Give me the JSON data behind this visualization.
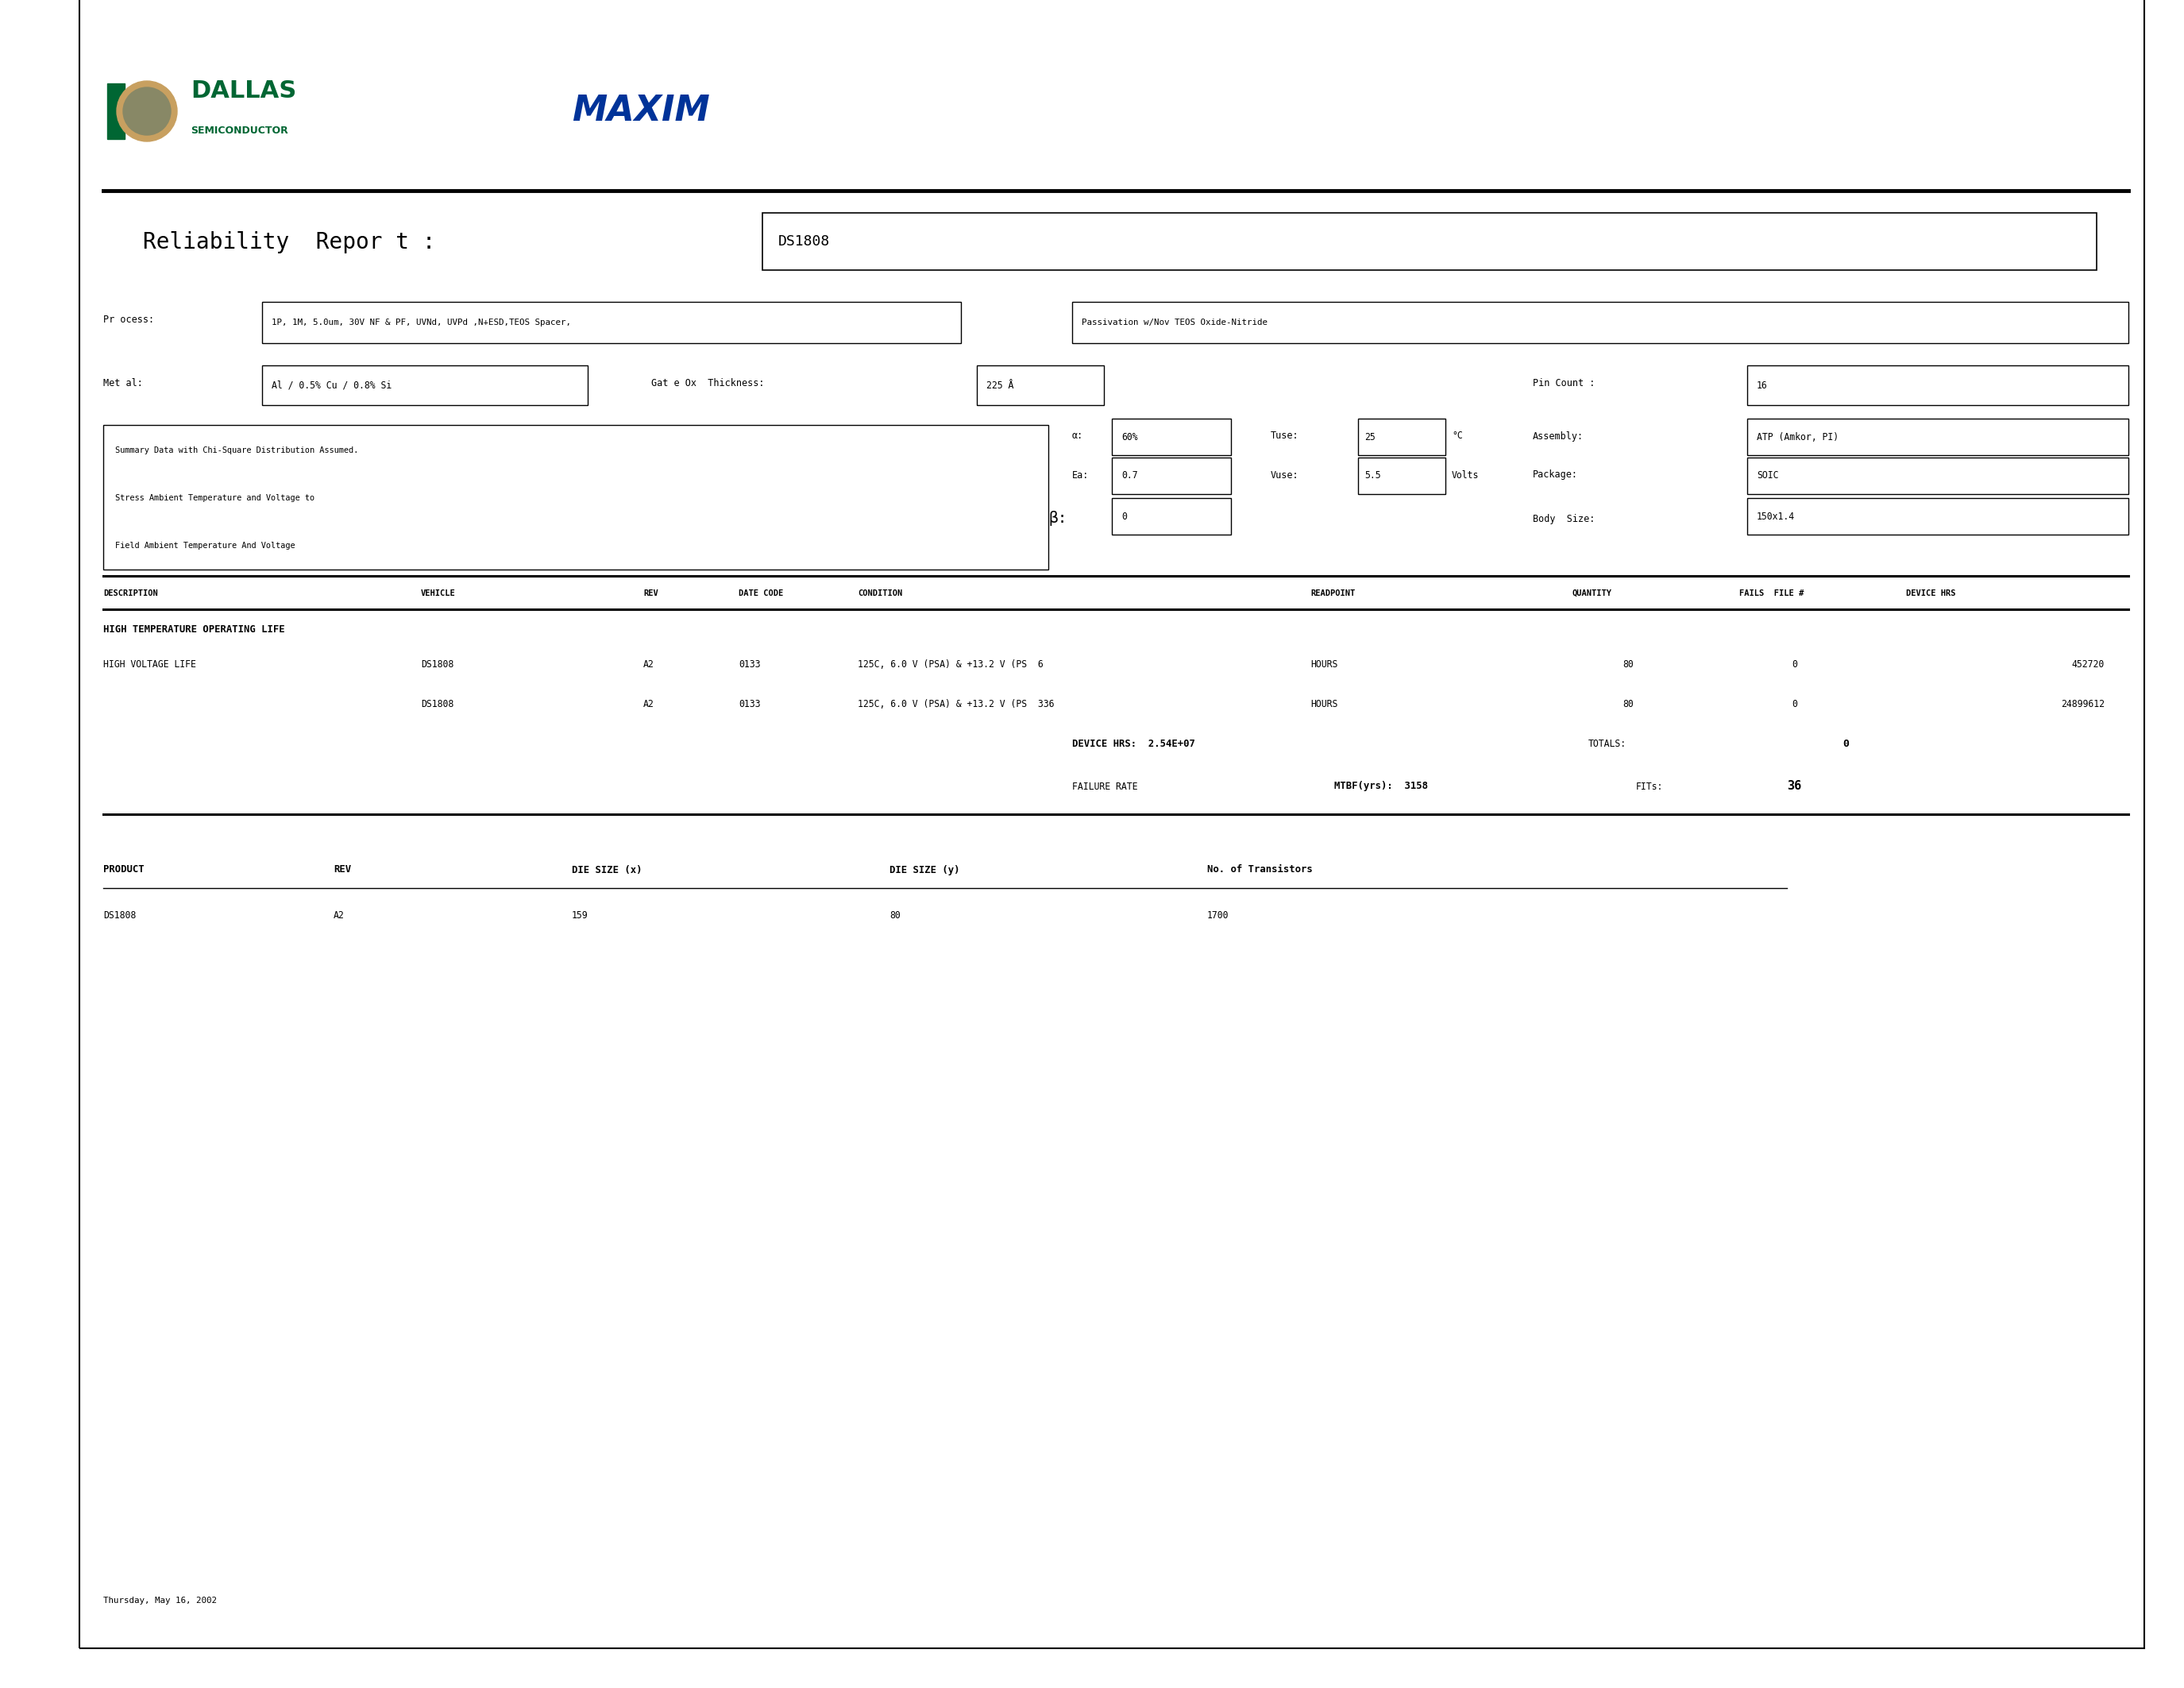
{
  "title": "Reliability Report",
  "product": "DS1808",
  "process": "1P, 1M, 5.0um, 30V NF & PF, UVNd, UVPd ,N+ESD,TEOS Spacer,",
  "passivation": "Passivation w/Nov TEOS Oxide-Nitride",
  "metal": "Al / 0.5% Cu / 0.8% Si",
  "gate_ox_thickness": "225 Å",
  "pin_count": "16",
  "ci": "60%",
  "tuse": "25",
  "tuse_unit": "°C",
  "assembly": "ATP (Amkor, PI)",
  "ea": "0.7",
  "vuse": "5.5",
  "vuse_unit": "Volts",
  "package": "SOIC",
  "beta": "0",
  "body_size": "150x1.4",
  "summary_box_lines": [
    "Summary Data with Chi-Square Distribution Assumed.",
    "Stress Ambient Temperature and Voltage to",
    "Field Ambient Temperature And Voltage"
  ],
  "section_title": "HIGH TEMPERATURE OPERATING LIFE",
  "row1": {
    "description": "HIGH VOLTAGE LIFE",
    "vehicle": "DS1808",
    "rev": "A2",
    "date_code": "0133",
    "condition": "125C, 6.0 V (PSA) & +13.2 V (PS",
    "qty_note": "6",
    "readpoint": "HOURS",
    "quantity": "80",
    "fails": "0",
    "device_hrs": "452720"
  },
  "row2": {
    "description": "",
    "vehicle": "DS1808",
    "rev": "A2",
    "date_code": "0133",
    "condition": "125C, 6.0 V (PSA) & +13.2 V (PS",
    "qty_note": "336",
    "readpoint": "HOURS",
    "quantity": "80",
    "fails": "0",
    "device_hrs": "24899612"
  },
  "device_hrs_total_label": "DEVICE HRS:",
  "device_hrs_total": "2.54E+07",
  "totals_label": "TOTALS:",
  "totals_value": "0",
  "failure_rate_label": "FAILURE RATE",
  "mtbf_label": "MTBF(yrs):",
  "mtbf_value": "3158",
  "fits_label": "FITs:",
  "fits_value": "36",
  "product_table_headers": [
    "PRODUCT",
    "REV",
    "DIE SIZE (x)",
    "DIE SIZE (y)",
    "No. of Transistors"
  ],
  "product_row": [
    "DS1808",
    "A2",
    "159",
    "80",
    "1700"
  ],
  "date_footer": "Thursday, May 16, 2002",
  "bg_color": "#ffffff",
  "text_color": "#000000",
  "dallas_green": "#006633",
  "maxim_blue": "#003399"
}
